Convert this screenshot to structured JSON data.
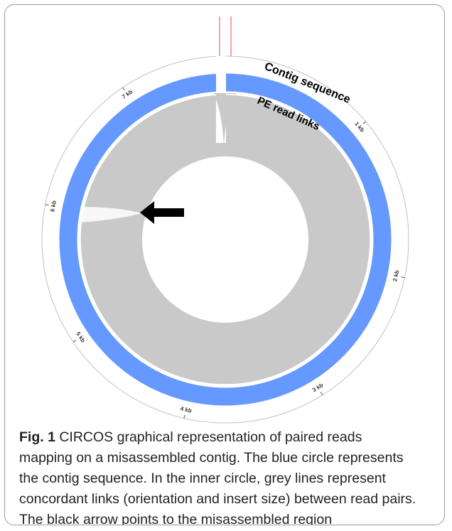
{
  "figure": {
    "caption_label": "Fig. 1",
    "caption_text": "CIRCOS graphical representation of paired reads mapping on a misassembled contig. The blue circle represents the contig sequence. In the inner circle, grey lines represent concordant links (orientation and insert size) between read pairs. The black arrow points to the misassembled region"
  },
  "diagram": {
    "contig_label": "Contig sequence",
    "links_label": "PE read links",
    "ticks": [
      "1 kb",
      "2 kb",
      "3 kb",
      "4 kb",
      "5 kb",
      "6 kb",
      "7 kb"
    ],
    "colors": {
      "contig": "#6699ff",
      "links": "#c9c9c9",
      "arrow": "#000000",
      "gap_marker": "#e05050"
    }
  }
}
